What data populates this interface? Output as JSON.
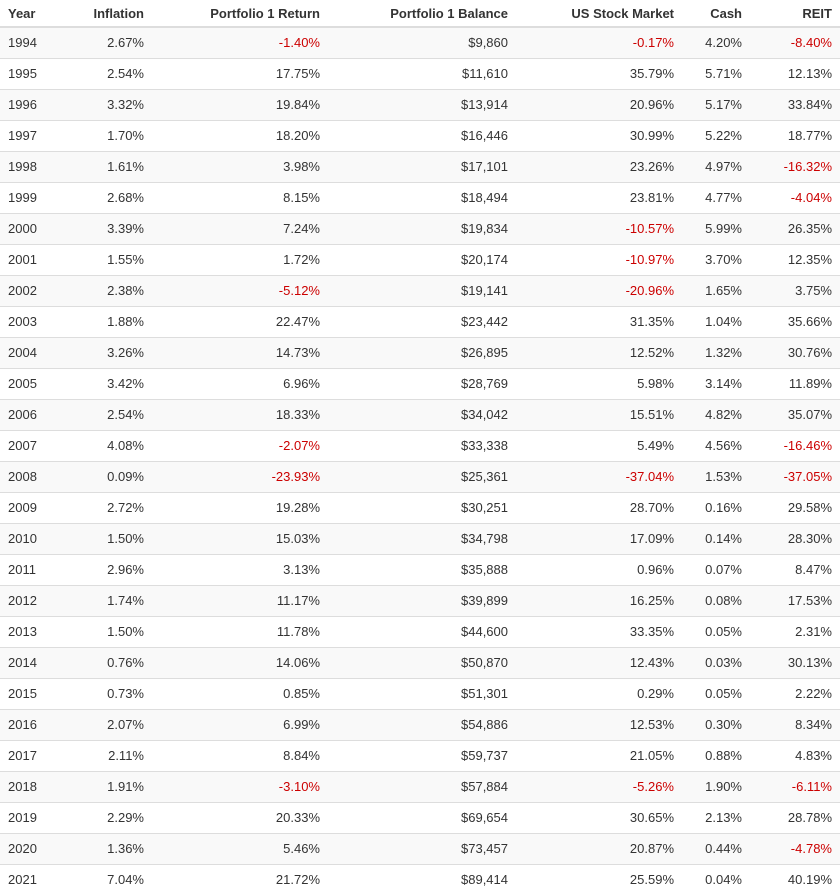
{
  "table": {
    "columns": [
      "Year",
      "Inflation",
      "Portfolio 1 Return",
      "Portfolio 1 Balance",
      "US Stock Market",
      "Cash",
      "REIT"
    ],
    "rows": [
      [
        "1994",
        "2.67%",
        "-1.40%",
        "$9,860",
        "-0.17%",
        "4.20%",
        "-8.40%"
      ],
      [
        "1995",
        "2.54%",
        "17.75%",
        "$11,610",
        "35.79%",
        "5.71%",
        "12.13%"
      ],
      [
        "1996",
        "3.32%",
        "19.84%",
        "$13,914",
        "20.96%",
        "5.17%",
        "33.84%"
      ],
      [
        "1997",
        "1.70%",
        "18.20%",
        "$16,446",
        "30.99%",
        "5.22%",
        "18.77%"
      ],
      [
        "1998",
        "1.61%",
        "3.98%",
        "$17,101",
        "23.26%",
        "4.97%",
        "-16.32%"
      ],
      [
        "1999",
        "2.68%",
        "8.15%",
        "$18,494",
        "23.81%",
        "4.77%",
        "-4.04%"
      ],
      [
        "2000",
        "3.39%",
        "7.24%",
        "$19,834",
        "-10.57%",
        "5.99%",
        "26.35%"
      ],
      [
        "2001",
        "1.55%",
        "1.72%",
        "$20,174",
        "-10.97%",
        "3.70%",
        "12.35%"
      ],
      [
        "2002",
        "2.38%",
        "-5.12%",
        "$19,141",
        "-20.96%",
        "1.65%",
        "3.75%"
      ],
      [
        "2003",
        "1.88%",
        "22.47%",
        "$23,442",
        "31.35%",
        "1.04%",
        "35.66%"
      ],
      [
        "2004",
        "3.26%",
        "14.73%",
        "$26,895",
        "12.52%",
        "1.32%",
        "30.76%"
      ],
      [
        "2005",
        "3.42%",
        "6.96%",
        "$28,769",
        "5.98%",
        "3.14%",
        "11.89%"
      ],
      [
        "2006",
        "2.54%",
        "18.33%",
        "$34,042",
        "15.51%",
        "4.82%",
        "35.07%"
      ],
      [
        "2007",
        "4.08%",
        "-2.07%",
        "$33,338",
        "5.49%",
        "4.56%",
        "-16.46%"
      ],
      [
        "2008",
        "0.09%",
        "-23.93%",
        "$25,361",
        "-37.04%",
        "1.53%",
        "-37.05%"
      ],
      [
        "2009",
        "2.72%",
        "19.28%",
        "$30,251",
        "28.70%",
        "0.16%",
        "29.58%"
      ],
      [
        "2010",
        "1.50%",
        "15.03%",
        "$34,798",
        "17.09%",
        "0.14%",
        "28.30%"
      ],
      [
        "2011",
        "2.96%",
        "3.13%",
        "$35,888",
        "0.96%",
        "0.07%",
        "8.47%"
      ],
      [
        "2012",
        "1.74%",
        "11.17%",
        "$39,899",
        "16.25%",
        "0.08%",
        "17.53%"
      ],
      [
        "2013",
        "1.50%",
        "11.78%",
        "$44,600",
        "33.35%",
        "0.05%",
        "2.31%"
      ],
      [
        "2014",
        "0.76%",
        "14.06%",
        "$50,870",
        "12.43%",
        "0.03%",
        "30.13%"
      ],
      [
        "2015",
        "0.73%",
        "0.85%",
        "$51,301",
        "0.29%",
        "0.05%",
        "2.22%"
      ],
      [
        "2016",
        "2.07%",
        "6.99%",
        "$54,886",
        "12.53%",
        "0.30%",
        "8.34%"
      ],
      [
        "2017",
        "2.11%",
        "8.84%",
        "$59,737",
        "21.05%",
        "0.88%",
        "4.83%"
      ],
      [
        "2018",
        "1.91%",
        "-3.10%",
        "$57,884",
        "-5.26%",
        "1.90%",
        "-6.11%"
      ],
      [
        "2019",
        "2.29%",
        "20.33%",
        "$69,654",
        "30.65%",
        "2.13%",
        "28.78%"
      ],
      [
        "2020",
        "1.36%",
        "5.46%",
        "$73,457",
        "20.87%",
        "0.44%",
        "-4.78%"
      ],
      [
        "2021",
        "7.04%",
        "21.72%",
        "$89,414",
        "25.59%",
        "0.04%",
        "40.19%"
      ]
    ]
  },
  "colors": {
    "negative": "#cc0000",
    "text": "#333333",
    "stripe": "#f9f9f9",
    "border": "#dddddd"
  }
}
